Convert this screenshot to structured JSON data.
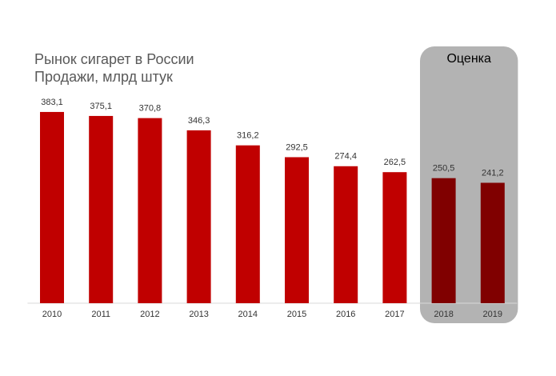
{
  "chart_data": {
    "type": "bar",
    "title": "Рынок сигарет в России",
    "subtitle": "Продажи, млрд штук",
    "annotation": "Оценка",
    "categories": [
      "2010",
      "2011",
      "2012",
      "2013",
      "2014",
      "2015",
      "2016",
      "2017",
      "2018",
      "2019"
    ],
    "values": [
      383.1,
      375.1,
      370.8,
      346.3,
      316.2,
      292.5,
      274.4,
      262.5,
      250.5,
      241.2
    ],
    "value_labels": [
      "383,1",
      "375,1",
      "370,8",
      "346,3",
      "316,2",
      "292,5",
      "274,4",
      "262,5",
      "250,5",
      "241,2"
    ],
    "colors": [
      "#c00000",
      "#c00000",
      "#c00000",
      "#c00000",
      "#c00000",
      "#c00000",
      "#c00000",
      "#c00000",
      "#800000",
      "#800000"
    ],
    "ylim": [
      0,
      400
    ]
  }
}
